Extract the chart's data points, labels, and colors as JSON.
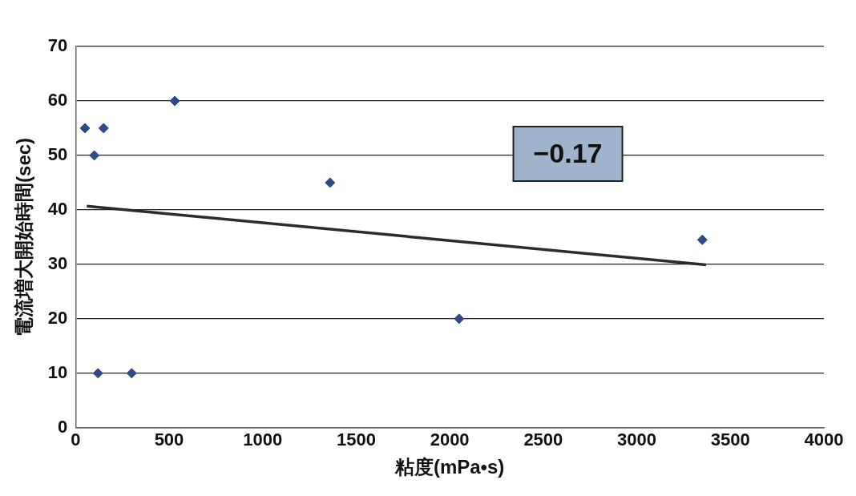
{
  "chart_data": {
    "type": "scatter",
    "xlabel": "粘度(mPa•s)",
    "ylabel": "電流増大開始時間(sec)",
    "xlim": [
      0,
      4000
    ],
    "xticks": [
      0,
      500,
      1000,
      1500,
      2000,
      2500,
      3000,
      3500,
      4000
    ],
    "ylim": [
      0,
      70
    ],
    "yticks": [
      0,
      10,
      20,
      30,
      40,
      50,
      60,
      70
    ],
    "grid": "y",
    "legend": false,
    "annotations": [
      "−0.17"
    ],
    "series": [
      {
        "marker": "diamond",
        "color": "#2e4a8a",
        "x": [
          50,
          100,
          150,
          120,
          300,
          530,
          1360,
          2050,
          3350
        ],
        "values": [
          55,
          50,
          55,
          10,
          10,
          60,
          45,
          20,
          34.5
        ]
      },
      {
        "type": "line",
        "marker": "none",
        "color": "#2b2b2b",
        "x": [
          60,
          3370
        ],
        "values": [
          40.7,
          29.9
        ]
      }
    ]
  }
}
